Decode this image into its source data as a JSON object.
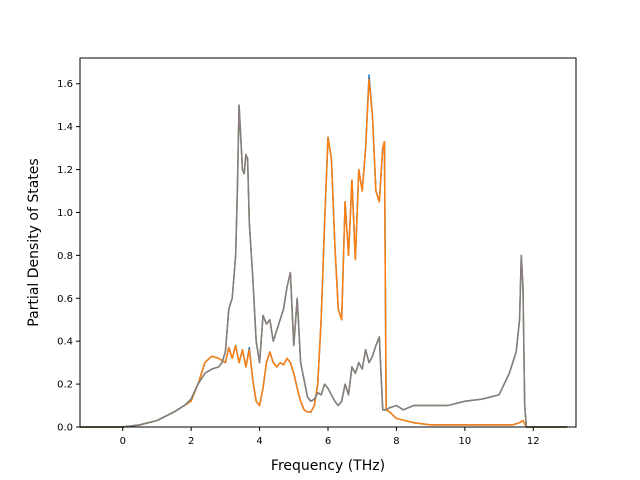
{
  "chart_data": {
    "type": "line",
    "xlabel": "Frequency (THz)",
    "ylabel": "Partial Density of States",
    "xlim": [
      -1.25,
      13.25
    ],
    "ylim": [
      0,
      1.72
    ],
    "x_ticks": [
      0,
      2,
      4,
      6,
      8,
      10,
      12
    ],
    "y_ticks": [
      0.0,
      0.2,
      0.4,
      0.6,
      0.8,
      1.0,
      1.2,
      1.4,
      1.6
    ],
    "x_tick_labels": [
      "0",
      "2",
      "4",
      "6",
      "8",
      "10",
      "12"
    ],
    "y_tick_labels": [
      "0.0",
      "0.2",
      "0.4",
      "0.6",
      "0.8",
      "1.0",
      "1.2",
      "1.4",
      "1.6"
    ],
    "grid": false,
    "legend": "none",
    "series": [
      {
        "color": "#1f77b4",
        "x": [
          -1.25,
          0,
          0.5,
          1.0,
          1.5,
          1.8,
          2.0,
          2.2,
          2.4,
          2.6,
          2.8,
          3.0,
          3.1,
          3.2,
          3.3,
          3.4,
          3.5,
          3.6,
          3.7,
          3.8,
          3.9,
          4.0,
          4.1,
          4.2,
          4.3,
          4.4,
          4.5,
          4.6,
          4.7,
          4.8,
          4.9,
          5.0,
          5.1,
          5.2,
          5.3,
          5.4,
          5.5,
          5.6,
          5.7,
          5.8,
          5.9,
          6.0,
          6.1,
          6.2,
          6.3,
          6.4,
          6.5,
          6.6,
          6.7,
          6.8,
          6.9,
          7.0,
          7.1,
          7.2,
          7.3,
          7.4,
          7.5,
          7.6,
          7.65,
          7.7,
          7.8,
          8.0,
          8.5,
          9.0,
          9.5,
          10.0,
          10.5,
          11.0,
          11.4,
          11.6,
          11.7,
          11.8,
          13.0
        ],
        "y": [
          0.0,
          0.0,
          0.01,
          0.03,
          0.07,
          0.1,
          0.13,
          0.2,
          0.3,
          0.33,
          0.32,
          0.3,
          0.37,
          0.32,
          0.38,
          0.3,
          0.36,
          0.28,
          0.37,
          0.22,
          0.12,
          0.1,
          0.18,
          0.3,
          0.35,
          0.3,
          0.28,
          0.3,
          0.29,
          0.32,
          0.3,
          0.25,
          0.18,
          0.12,
          0.08,
          0.07,
          0.07,
          0.1,
          0.2,
          0.5,
          0.95,
          1.35,
          1.25,
          0.85,
          0.55,
          0.5,
          1.05,
          0.8,
          1.15,
          0.78,
          1.2,
          1.1,
          1.3,
          1.64,
          1.45,
          1.1,
          1.05,
          1.3,
          1.33,
          0.08,
          0.07,
          0.04,
          0.02,
          0.01,
          0.01,
          0.01,
          0.01,
          0.01,
          0.01,
          0.02,
          0.03,
          0.0,
          0.0
        ]
      },
      {
        "color": "#ff7f0e",
        "x": [
          -1.25,
          0,
          0.5,
          1.0,
          1.5,
          1.8,
          2.0,
          2.2,
          2.4,
          2.6,
          2.8,
          3.0,
          3.1,
          3.2,
          3.3,
          3.4,
          3.5,
          3.6,
          3.7,
          3.8,
          3.9,
          4.0,
          4.1,
          4.2,
          4.3,
          4.4,
          4.5,
          4.6,
          4.7,
          4.8,
          4.9,
          5.0,
          5.1,
          5.2,
          5.3,
          5.4,
          5.5,
          5.6,
          5.7,
          5.8,
          5.9,
          6.0,
          6.1,
          6.2,
          6.3,
          6.4,
          6.5,
          6.6,
          6.7,
          6.8,
          6.9,
          7.0,
          7.1,
          7.2,
          7.3,
          7.4,
          7.5,
          7.6,
          7.65,
          7.7,
          7.8,
          8.0,
          8.5,
          9.0,
          9.5,
          10.0,
          10.5,
          11.0,
          11.4,
          11.6,
          11.7,
          11.8,
          13.0
        ],
        "y": [
          0.0,
          0.0,
          0.01,
          0.03,
          0.07,
          0.1,
          0.12,
          0.2,
          0.3,
          0.33,
          0.32,
          0.3,
          0.37,
          0.32,
          0.38,
          0.3,
          0.36,
          0.28,
          0.36,
          0.22,
          0.12,
          0.1,
          0.18,
          0.3,
          0.35,
          0.3,
          0.28,
          0.3,
          0.29,
          0.32,
          0.3,
          0.25,
          0.18,
          0.12,
          0.08,
          0.07,
          0.07,
          0.1,
          0.2,
          0.5,
          0.95,
          1.35,
          1.25,
          0.85,
          0.55,
          0.5,
          1.05,
          0.8,
          1.15,
          0.78,
          1.2,
          1.1,
          1.3,
          1.62,
          1.45,
          1.1,
          1.05,
          1.3,
          1.33,
          0.08,
          0.07,
          0.04,
          0.02,
          0.01,
          0.01,
          0.01,
          0.01,
          0.01,
          0.01,
          0.02,
          0.03,
          0.0,
          0.0
        ]
      },
      {
        "color": "#2ca02c",
        "x": [
          -1.25,
          0,
          0.5,
          1.0,
          1.5,
          1.8,
          2.0,
          2.2,
          2.4,
          2.6,
          2.8,
          2.9,
          3.0,
          3.1,
          3.2,
          3.3,
          3.35,
          3.4,
          3.5,
          3.55,
          3.6,
          3.65,
          3.7,
          3.8,
          3.9,
          4.0,
          4.1,
          4.2,
          4.3,
          4.4,
          4.5,
          4.6,
          4.7,
          4.8,
          4.9,
          5.0,
          5.1,
          5.2,
          5.3,
          5.4,
          5.5,
          5.6,
          5.7,
          5.8,
          5.9,
          6.0,
          6.1,
          6.2,
          6.3,
          6.4,
          6.5,
          6.6,
          6.7,
          6.8,
          6.9,
          7.0,
          7.1,
          7.2,
          7.3,
          7.4,
          7.5,
          7.6,
          7.7,
          7.8,
          8.0,
          8.2,
          8.5,
          9.0,
          9.5,
          10.0,
          10.5,
          11.0,
          11.3,
          11.5,
          11.6,
          11.65,
          11.7,
          11.75,
          11.8,
          13.0
        ],
        "y": [
          0.0,
          0.0,
          0.01,
          0.03,
          0.07,
          0.1,
          0.13,
          0.2,
          0.25,
          0.27,
          0.28,
          0.3,
          0.35,
          0.55,
          0.6,
          0.8,
          1.1,
          1.5,
          1.2,
          1.18,
          1.27,
          1.25,
          0.95,
          0.7,
          0.4,
          0.3,
          0.52,
          0.48,
          0.5,
          0.4,
          0.45,
          0.5,
          0.55,
          0.65,
          0.72,
          0.38,
          0.6,
          0.3,
          0.22,
          0.14,
          0.12,
          0.13,
          0.16,
          0.15,
          0.2,
          0.18,
          0.15,
          0.12,
          0.1,
          0.12,
          0.2,
          0.15,
          0.28,
          0.25,
          0.3,
          0.27,
          0.36,
          0.3,
          0.33,
          0.38,
          0.42,
          0.08,
          0.08,
          0.09,
          0.1,
          0.08,
          0.1,
          0.1,
          0.1,
          0.12,
          0.13,
          0.15,
          0.25,
          0.35,
          0.5,
          0.8,
          0.65,
          0.1,
          0.0,
          0.0
        ]
      },
      {
        "color": "#8c7b80",
        "x": [
          -1.25,
          0,
          0.5,
          1.0,
          1.5,
          1.8,
          2.0,
          2.2,
          2.4,
          2.6,
          2.8,
          2.9,
          3.0,
          3.1,
          3.2,
          3.3,
          3.35,
          3.4,
          3.5,
          3.55,
          3.6,
          3.65,
          3.7,
          3.8,
          3.9,
          4.0,
          4.1,
          4.2,
          4.3,
          4.4,
          4.5,
          4.6,
          4.7,
          4.8,
          4.9,
          5.0,
          5.1,
          5.2,
          5.3,
          5.4,
          5.5,
          5.6,
          5.7,
          5.8,
          5.9,
          6.0,
          6.1,
          6.2,
          6.3,
          6.4,
          6.5,
          6.6,
          6.7,
          6.8,
          6.9,
          7.0,
          7.1,
          7.2,
          7.3,
          7.4,
          7.5,
          7.6,
          7.7,
          7.8,
          8.0,
          8.2,
          8.5,
          9.0,
          9.5,
          10.0,
          10.5,
          11.0,
          11.3,
          11.5,
          11.6,
          11.65,
          11.7,
          11.75,
          11.8,
          13.0
        ],
        "y": [
          0.0,
          0.0,
          0.01,
          0.03,
          0.07,
          0.1,
          0.13,
          0.2,
          0.25,
          0.27,
          0.28,
          0.3,
          0.35,
          0.55,
          0.6,
          0.8,
          1.1,
          1.5,
          1.2,
          1.18,
          1.27,
          1.25,
          0.95,
          0.7,
          0.4,
          0.3,
          0.52,
          0.48,
          0.5,
          0.4,
          0.45,
          0.5,
          0.55,
          0.65,
          0.72,
          0.38,
          0.6,
          0.3,
          0.22,
          0.14,
          0.12,
          0.13,
          0.16,
          0.15,
          0.2,
          0.18,
          0.15,
          0.12,
          0.1,
          0.12,
          0.2,
          0.15,
          0.28,
          0.25,
          0.3,
          0.27,
          0.36,
          0.3,
          0.33,
          0.38,
          0.42,
          0.08,
          0.08,
          0.09,
          0.1,
          0.08,
          0.1,
          0.1,
          0.1,
          0.12,
          0.13,
          0.15,
          0.25,
          0.35,
          0.5,
          0.8,
          0.65,
          0.1,
          0.0,
          0.0
        ]
      }
    ]
  }
}
